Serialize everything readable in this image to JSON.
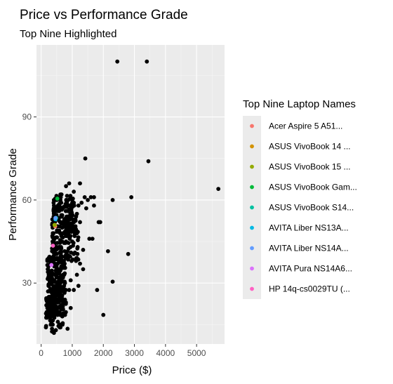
{
  "chart_data": {
    "type": "scatter",
    "title": "Price vs Performance Grade",
    "subtitle": "Top Nine Highlighted",
    "xlabel": "Price ($)",
    "ylabel": "Performance Grade",
    "xlim": [
      -150,
      5900
    ],
    "ylim": [
      8,
      116
    ],
    "x_ticks": [
      0,
      1000,
      2000,
      3000,
      4000,
      5000
    ],
    "y_ticks": [
      30,
      60,
      90
    ],
    "panel_background": "#ebebeb",
    "grid": true,
    "legend_title": "Top Nine Laptop Names",
    "legend_position": "right",
    "base_color": "#000000",
    "highlight_series": [
      {
        "name": "Acer Aspire 5 A51...",
        "color": "#F8766D",
        "x": 450,
        "y": 50.5
      },
      {
        "name": "ASUS VivoBook 14 ...",
        "color": "#D39200",
        "x": 440,
        "y": 51
      },
      {
        "name": "ASUS VivoBook 15 ...",
        "color": "#93AA00",
        "x": 430,
        "y": 51
      },
      {
        "name": "ASUS VivoBook Gam...",
        "color": "#00BA38",
        "x": 520,
        "y": 60.5
      },
      {
        "name": "ASUS VivoBook S14...",
        "color": "#00C19F",
        "x": 480,
        "y": 53.5
      },
      {
        "name": "AVITA Liber NS13A...",
        "color": "#00B9E3",
        "x": 460,
        "y": 53
      },
      {
        "name": "AVITA Liber NS14A...",
        "color": "#619CFF",
        "x": 460,
        "y": 53.5
      },
      {
        "name": "AVITA Pura NS14A6...",
        "color": "#DB72FB",
        "x": 330,
        "y": 36.5
      },
      {
        "name": "HP 14q-cs0029TU (...",
        "color": "#FF61C3",
        "x": 380,
        "y": 43.5
      }
    ],
    "points": [
      [
        2450,
        110
      ],
      [
        3400,
        110
      ],
      [
        5700,
        64
      ],
      [
        3450,
        74
      ],
      [
        1420,
        75
      ],
      [
        2900,
        61
      ],
      [
        2300,
        60
      ],
      [
        2800,
        40.5
      ],
      [
        2300,
        30.5
      ],
      [
        1800,
        27.5
      ],
      [
        2000,
        18.5
      ],
      [
        2150,
        41.5
      ],
      [
        1850,
        52
      ],
      [
        1700,
        58
      ],
      [
        1500,
        60
      ],
      [
        1100,
        53
      ],
      [
        1350,
        42
      ],
      [
        1550,
        46
      ],
      [
        1250,
        66
      ],
      [
        900,
        66
      ],
      [
        800,
        65
      ],
      [
        1050,
        63
      ],
      [
        1350,
        35
      ],
      [
        1200,
        29
      ],
      [
        950,
        21
      ],
      [
        850,
        13.5
      ],
      [
        1150,
        55
      ],
      [
        1300,
        59
      ],
      [
        1700,
        61
      ],
      [
        1600,
        61
      ],
      [
        1400,
        61
      ],
      [
        1200,
        58
      ],
      [
        1050,
        58
      ],
      [
        1450,
        57
      ],
      [
        1000,
        45
      ],
      [
        1150,
        48
      ],
      [
        1250,
        52
      ],
      [
        1050,
        40.5
      ],
      [
        1250,
        37
      ],
      [
        1150,
        33
      ],
      [
        950,
        31
      ],
      [
        900,
        27.5
      ],
      [
        1050,
        27.5
      ],
      [
        1650,
        46
      ],
      [
        1900,
        52
      ]
    ],
    "clusters": [
      {
        "x": [
          200,
          800
        ],
        "y": [
          18,
          40
        ],
        "n": 260
      },
      {
        "x": [
          350,
          1200
        ],
        "y": [
          38,
          54
        ],
        "n": 160
      },
      {
        "x": [
          400,
          1100
        ],
        "y": [
          50,
          62
        ],
        "n": 110
      },
      {
        "x": [
          150,
          700
        ],
        "y": [
          12,
          26
        ],
        "n": 80
      }
    ]
  }
}
